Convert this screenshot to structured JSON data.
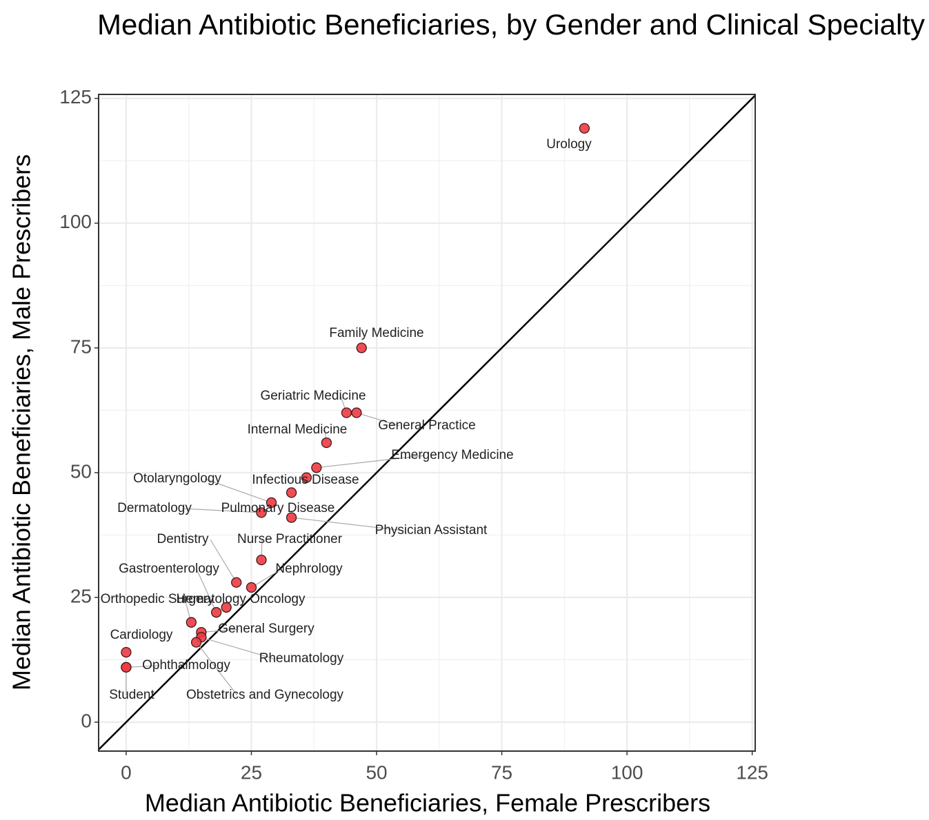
{
  "chart_data": {
    "type": "scatter",
    "title": "Median Antibiotic Beneficiaries, by Gender and Clinical Specialty",
    "x_label": "Median Antibiotic Beneficiaries, Female Prescribers",
    "y_label": "Median Antibiotic Beneficiaries, Male Prescribers",
    "color": "#ee3a42",
    "grid": true,
    "xlim": [
      -5.5,
      125.6
    ],
    "ylim": [
      -5.8,
      125.8
    ],
    "xticks": [
      0,
      25,
      50,
      75,
      100,
      125
    ],
    "yticks": [
      0,
      25,
      50,
      75,
      100,
      125
    ],
    "labels": [
      "Urology",
      "Family Medicine",
      "Geriatric Medicine",
      "General Practice",
      "Internal Medicine",
      "Emergency Medicine",
      "Infectious Disease",
      "Pulmonary Disease",
      "Otolaryngology",
      "Dermatology",
      "Physician Assistant",
      "Nurse Practitioner",
      "Dentistry",
      "Nephrology",
      "Gastroenterology",
      "Hematology Oncology",
      "Orthopedic Surgery",
      "General Surgery",
      "Rheumatology",
      "Obstetrics and Gynecology",
      "Cardiology",
      "Ophthalmology",
      "Student"
    ],
    "x": [
      91.5,
      47,
      44,
      46,
      40,
      38,
      36,
      33,
      29,
      27,
      33,
      27,
      22,
      25,
      18,
      20,
      13,
      15,
      15,
      14,
      0,
      0,
      0
    ],
    "values": [
      119,
      75,
      62,
      62,
      56,
      51,
      49,
      46,
      44,
      42,
      41,
      32.5,
      28,
      27,
      22,
      23,
      20,
      18,
      17,
      16,
      14,
      11,
      11
    ]
  }
}
